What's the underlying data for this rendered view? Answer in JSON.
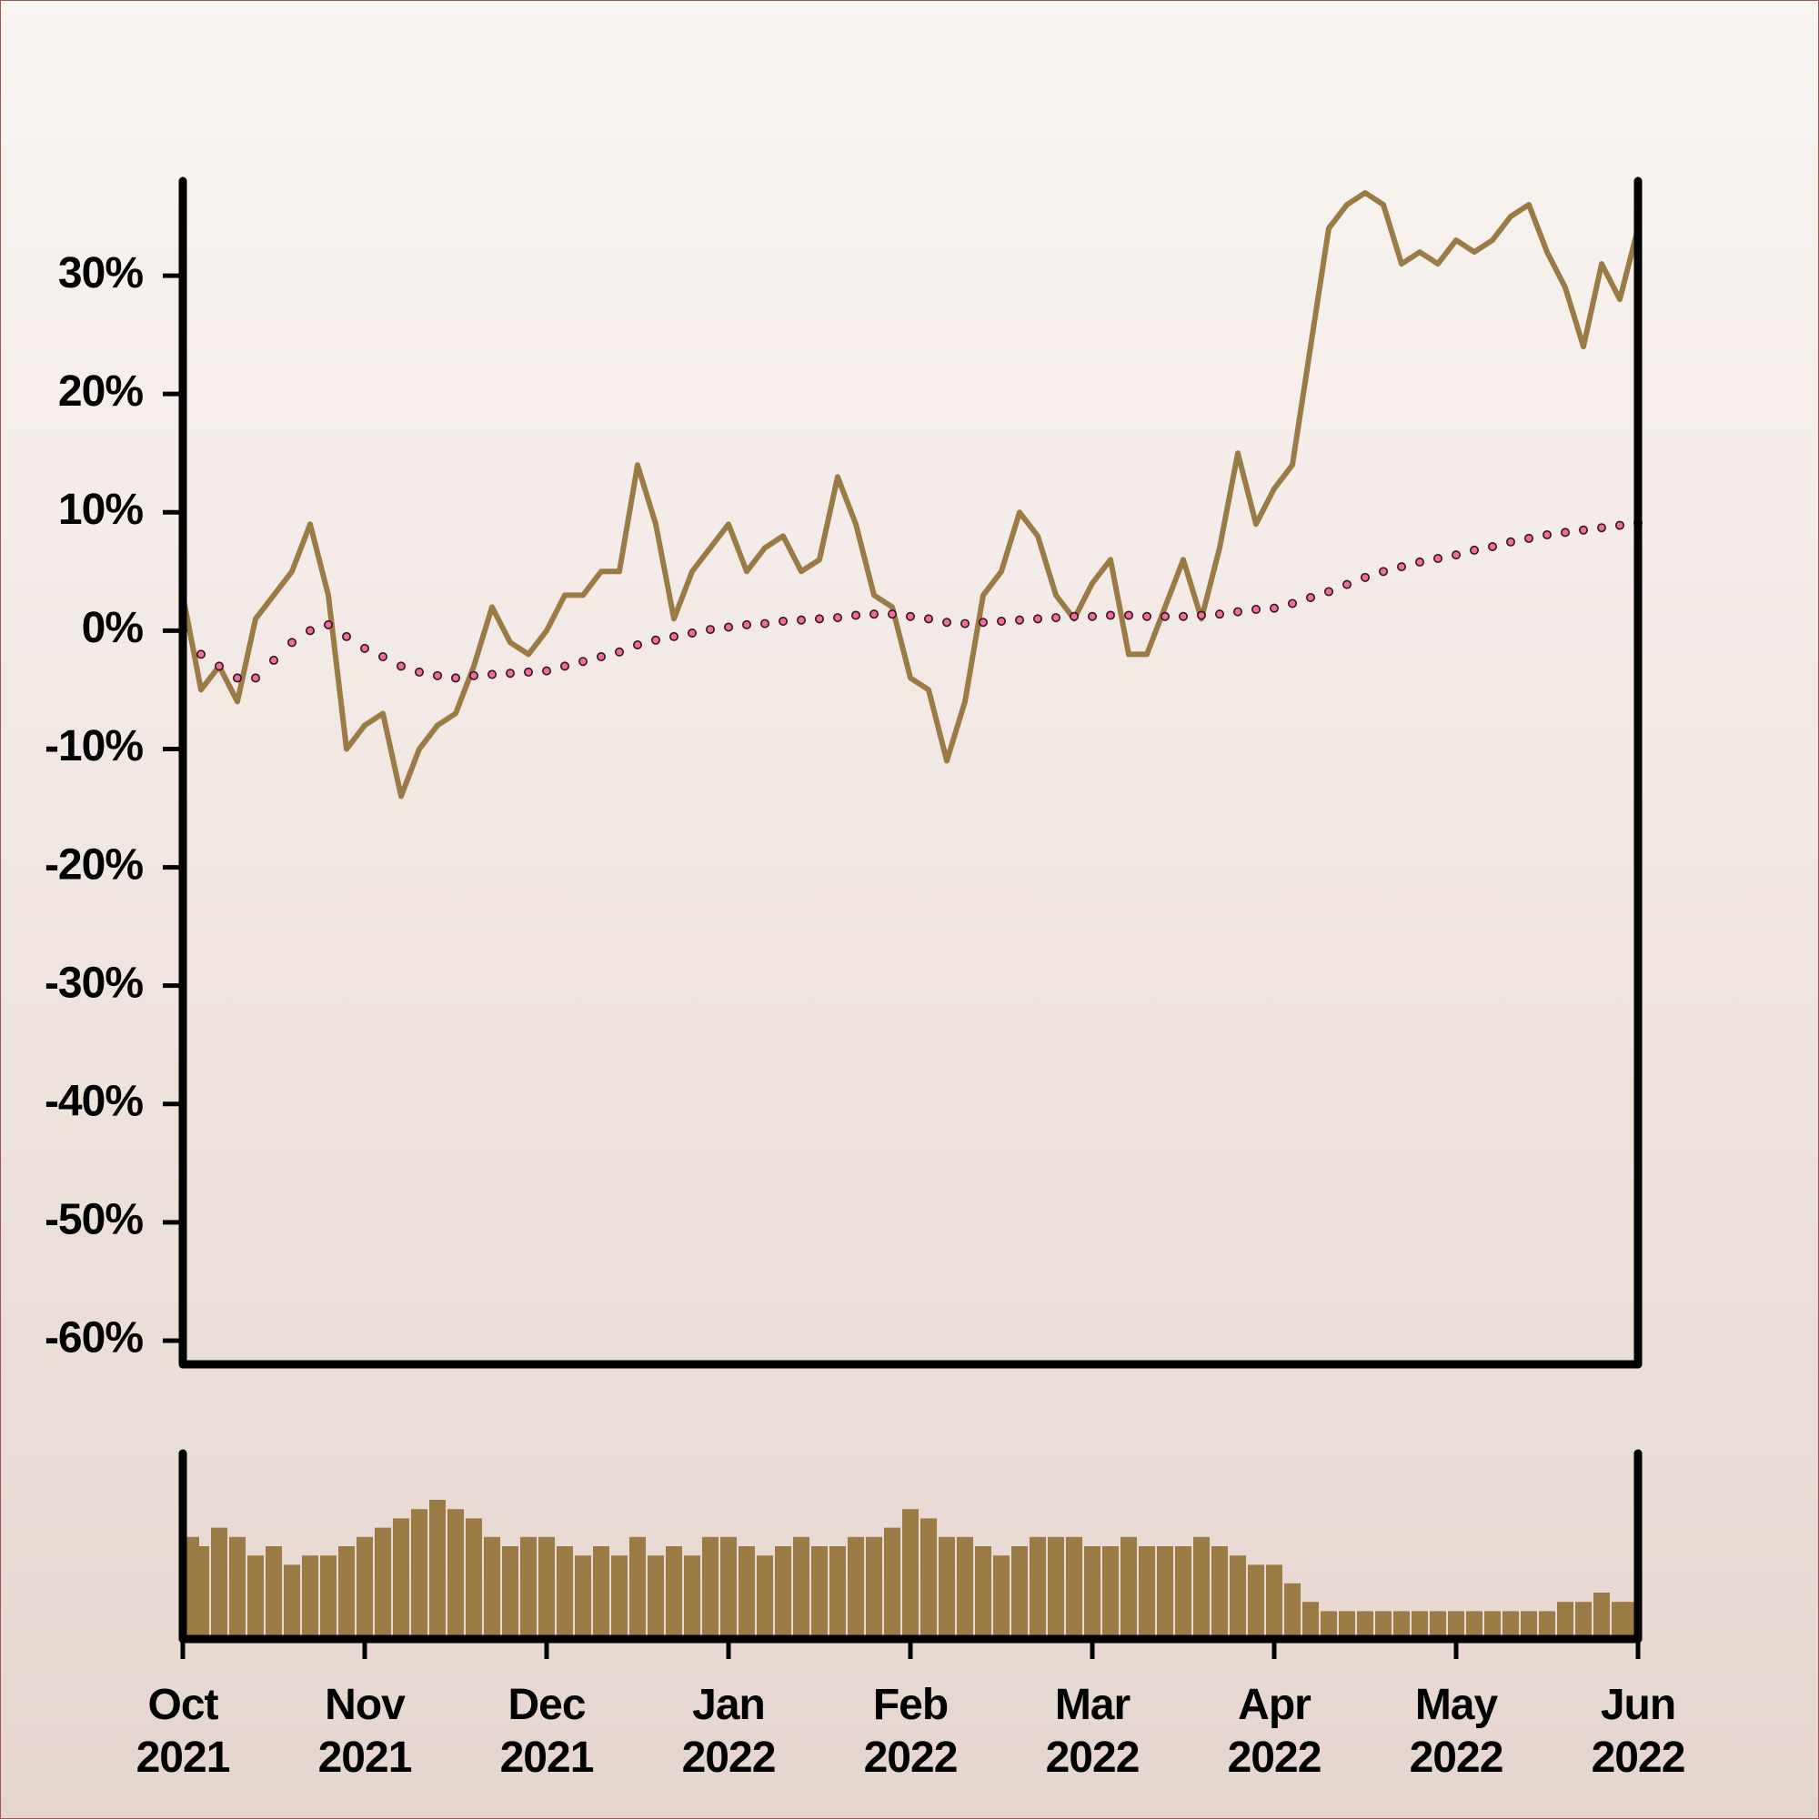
{
  "chart_data": [
    {
      "type": "line",
      "x": [
        0,
        0.1,
        0.2,
        0.3,
        0.4,
        0.5,
        0.6,
        0.7,
        0.8,
        0.9,
        1,
        1.1,
        1.2,
        1.3,
        1.4,
        1.5,
        1.6,
        1.7,
        1.8,
        1.9,
        2,
        2.1,
        2.2,
        2.3,
        2.4,
        2.5,
        2.6,
        2.7,
        2.8,
        2.9,
        3,
        3.1,
        3.2,
        3.3,
        3.4,
        3.5,
        3.6,
        3.7,
        3.8,
        3.9,
        4,
        4.1,
        4.2,
        4.3,
        4.4,
        4.5,
        4.6,
        4.7,
        4.8,
        4.9,
        5,
        5.1,
        5.2,
        5.3,
        5.4,
        5.5,
        5.6,
        5.7,
        5.8,
        5.9,
        6,
        6.1,
        6.2,
        6.3,
        6.4,
        6.5,
        6.6,
        6.7,
        6.8,
        6.9,
        7,
        7.1,
        7.2,
        7.3,
        7.4,
        7.5,
        7.6,
        7.7,
        7.8,
        7.9,
        8
      ],
      "xlim": [
        0,
        8
      ],
      "ylim": [
        -62,
        38
      ],
      "yticks": [
        {
          "value": -60,
          "label": "-60%"
        },
        {
          "value": -50,
          "label": "-50%"
        },
        {
          "value": -40,
          "label": "-40%"
        },
        {
          "value": -30,
          "label": "-30%"
        },
        {
          "value": -20,
          "label": "-20%"
        },
        {
          "value": -10,
          "label": "-10%"
        },
        {
          "value": 0,
          "label": "0%"
        },
        {
          "value": 10,
          "label": "10%"
        },
        {
          "value": 20,
          "label": "20%"
        },
        {
          "value": 30,
          "label": "30%"
        }
      ],
      "series": [
        {
          "color": "#9a7b45",
          "style": "solid",
          "values": [
            3,
            -5,
            -3,
            -6,
            1,
            3,
            5,
            9,
            3,
            -10,
            -8,
            -7,
            -14,
            -10,
            -8,
            -7,
            -3,
            2,
            -1,
            -2,
            0,
            3,
            3,
            5,
            5,
            14,
            9,
            1,
            5,
            7,
            9,
            5,
            7,
            8,
            5,
            6,
            13,
            9,
            3,
            2,
            -4,
            -5,
            -11,
            -6,
            3,
            5,
            10,
            8,
            3,
            1,
            4,
            6,
            -2,
            -2,
            2,
            6,
            1,
            7,
            15,
            9,
            12,
            14,
            24,
            34,
            36,
            37,
            36,
            31,
            32,
            31,
            33,
            32,
            33,
            35,
            36,
            32,
            29,
            24,
            31,
            28,
            34
          ]
        },
        {
          "color": "#e8709a",
          "style": "dotted",
          "values": [
            0,
            -2,
            -3,
            -4,
            -4,
            -2.5,
            -1,
            0,
            0.5,
            -0.5,
            -1.5,
            -2.2,
            -3,
            -3.5,
            -3.8,
            -4,
            -3.8,
            -3.7,
            -3.6,
            -3.5,
            -3.4,
            -3,
            -2.6,
            -2.2,
            -1.8,
            -1.2,
            -0.8,
            -0.5,
            -0.2,
            0.1,
            0.3,
            0.5,
            0.6,
            0.8,
            0.9,
            1,
            1.1,
            1.3,
            1.4,
            1.4,
            1.2,
            1,
            0.7,
            0.6,
            0.7,
            0.8,
            0.9,
            1,
            1.1,
            1.2,
            1.2,
            1.3,
            1.3,
            1.2,
            1.2,
            1.2,
            1.3,
            1.4,
            1.6,
            1.8,
            1.9,
            2.3,
            2.8,
            3.3,
            3.9,
            4.5,
            5,
            5.4,
            5.8,
            6.1,
            6.4,
            6.8,
            7.1,
            7.5,
            7.8,
            8.1,
            8.3,
            8.5,
            8.7,
            8.9,
            9.1
          ]
        }
      ]
    },
    {
      "type": "bar",
      "x": [
        0,
        0.1,
        0.2,
        0.3,
        0.4,
        0.5,
        0.6,
        0.7,
        0.8,
        0.9,
        1,
        1.1,
        1.2,
        1.3,
        1.4,
        1.5,
        1.6,
        1.7,
        1.8,
        1.9,
        2,
        2.1,
        2.2,
        2.3,
        2.4,
        2.5,
        2.6,
        2.7,
        2.8,
        2.9,
        3,
        3.1,
        3.2,
        3.3,
        3.4,
        3.5,
        3.6,
        3.7,
        3.8,
        3.9,
        4,
        4.1,
        4.2,
        4.3,
        4.4,
        4.5,
        4.6,
        4.7,
        4.8,
        4.9,
        5,
        5.1,
        5.2,
        5.3,
        5.4,
        5.5,
        5.6,
        5.7,
        5.8,
        5.9,
        6,
        6.1,
        6.2,
        6.3,
        6.4,
        6.5,
        6.6,
        6.7,
        6.8,
        6.9,
        7,
        7.1,
        7.2,
        7.3,
        7.4,
        7.5,
        7.6,
        7.7,
        7.8,
        7.9,
        8
      ],
      "xlim": [
        0,
        8
      ],
      "ylim": [
        0,
        100
      ],
      "color": "#9a7b45",
      "values": [
        55,
        50,
        60,
        55,
        45,
        50,
        40,
        45,
        45,
        50,
        55,
        60,
        65,
        70,
        75,
        70,
        65,
        55,
        50,
        55,
        55,
        50,
        45,
        50,
        45,
        55,
        45,
        50,
        45,
        55,
        55,
        50,
        45,
        50,
        55,
        50,
        50,
        55,
        55,
        60,
        70,
        65,
        55,
        55,
        50,
        45,
        50,
        55,
        55,
        55,
        50,
        50,
        55,
        50,
        50,
        50,
        55,
        50,
        45,
        40,
        40,
        30,
        20,
        15,
        15,
        15,
        15,
        15,
        15,
        15,
        15,
        15,
        15,
        15,
        15,
        15,
        20,
        20,
        25,
        20,
        20
      ],
      "xticks": [
        {
          "value": 0,
          "label": "Oct\n2021"
        },
        {
          "value": 1,
          "label": "Nov\n2021"
        },
        {
          "value": 2,
          "label": "Dec\n2021"
        },
        {
          "value": 3,
          "label": "Jan\n2022"
        },
        {
          "value": 4,
          "label": "Feb\n2022"
        },
        {
          "value": 5,
          "label": "Mar\n2022"
        },
        {
          "value": 6,
          "label": "Apr\n2022"
        },
        {
          "value": 7,
          "label": "May\n2022"
        },
        {
          "value": 8,
          "label": "Jun\n2022"
        }
      ]
    }
  ]
}
